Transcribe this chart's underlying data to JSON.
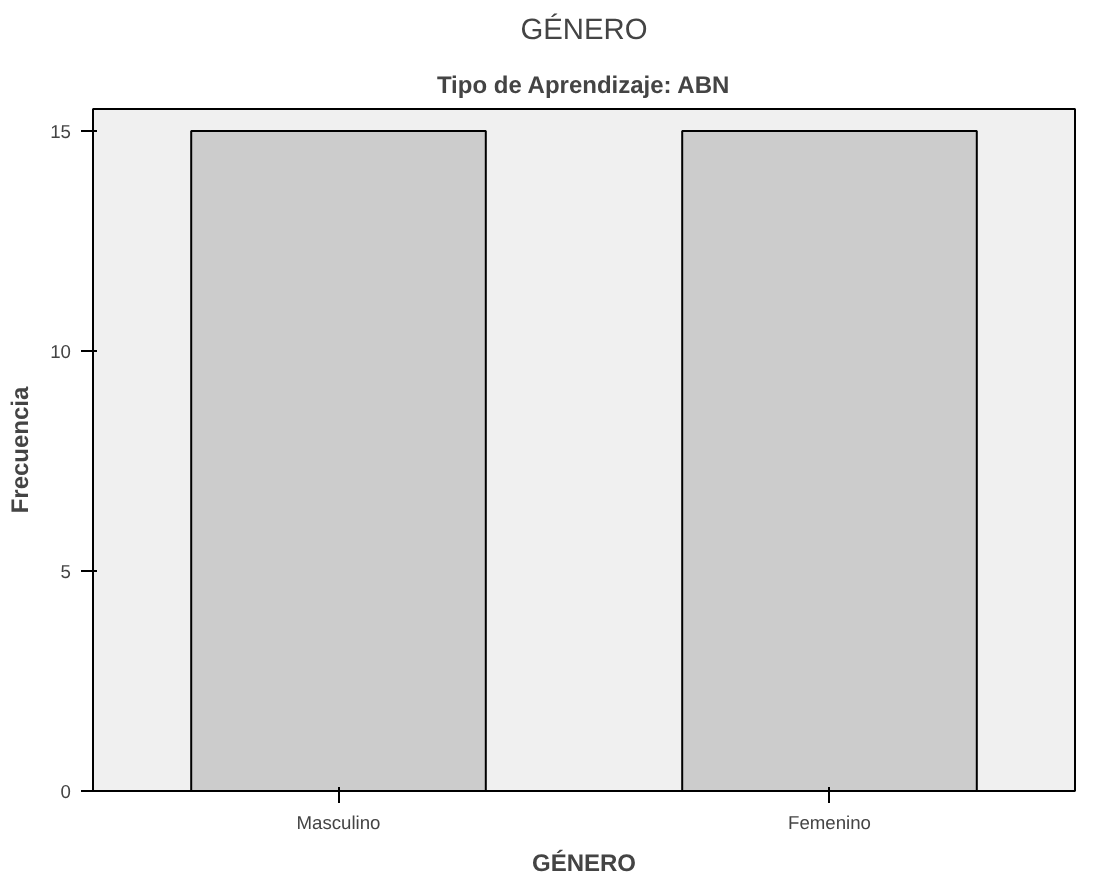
{
  "chart_data": {
    "type": "bar",
    "title": "GÉNERO",
    "subtitle": "Tipo de Aprendizaje: ABN",
    "xlabel": "GÉNERO",
    "ylabel": "Frecuencia",
    "categories": [
      "Masculino",
      "Femenino"
    ],
    "values": [
      15,
      15
    ],
    "color": "#cccccc",
    "ylim": [
      0,
      15.5
    ],
    "yticks": [
      0,
      5,
      10,
      15
    ],
    "grid": false
  }
}
